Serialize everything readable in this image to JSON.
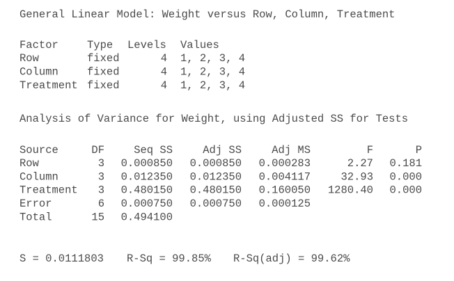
{
  "title": "General Linear Model: Weight versus Row, Column, Treatment",
  "factors": {
    "header": [
      "Factor",
      "Type",
      "Levels",
      "Values"
    ],
    "rows": [
      [
        "Row",
        "fixed",
        "4",
        "1, 2, 3, 4"
      ],
      [
        "Column",
        "fixed",
        "4",
        "1, 2, 3, 4"
      ],
      [
        "Treatment",
        "fixed",
        "4",
        "1, 2, 3, 4"
      ]
    ]
  },
  "anova_title": "Analysis of Variance for Weight, using Adjusted SS for Tests",
  "anova": {
    "header": [
      "Source",
      "DF",
      "Seq SS",
      "Adj SS",
      "Adj MS",
      "F",
      "P"
    ],
    "rows": [
      [
        "Row",
        "3",
        "0.000850",
        "0.000850",
        "0.000283",
        "2.27",
        "0.181"
      ],
      [
        "Column",
        "3",
        "0.012350",
        "0.012350",
        "0.004117",
        "32.93",
        "0.000"
      ],
      [
        "Treatment",
        "3",
        "0.480150",
        "0.480150",
        "0.160050",
        "1280.40",
        "0.000"
      ],
      [
        "Error",
        "6",
        "0.000750",
        "0.000750",
        "0.000125"
      ],
      [
        "Total",
        "15",
        "0.494100"
      ]
    ]
  },
  "summary": [
    "S = 0.0111803",
    "R-Sq = 99.85%",
    "R-Sq(adj) = 99.62%"
  ]
}
